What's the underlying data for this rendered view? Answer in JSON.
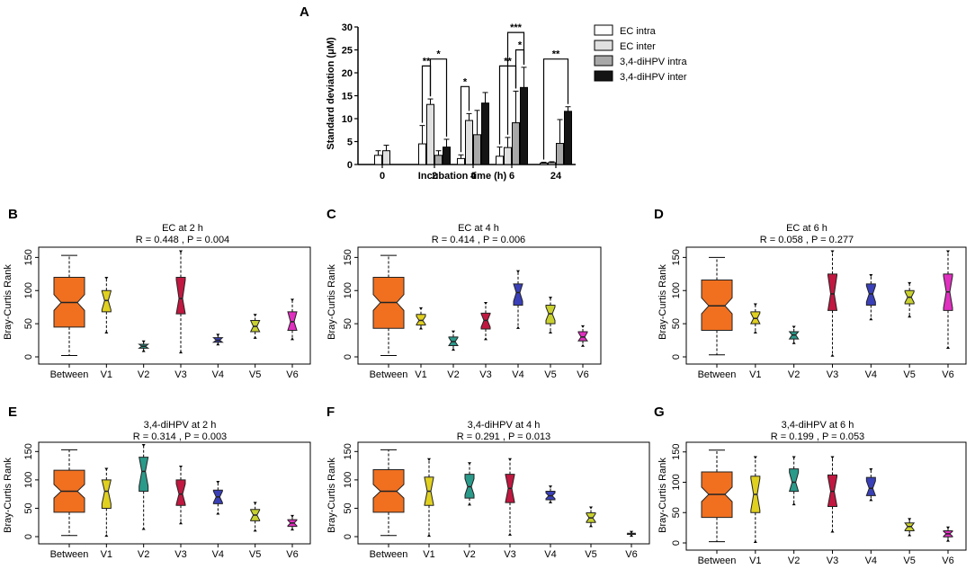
{
  "chart_data": [
    {
      "panel": "A",
      "type": "bar",
      "title": "",
      "xlabel": "Incubation time (h)",
      "ylabel": "Standard deviation (μM)",
      "ylim": [
        0,
        30
      ],
      "yticks": [
        "0",
        "5",
        "10",
        "15",
        "20",
        "25",
        "30"
      ],
      "categories": [
        "0",
        "2",
        "4",
        "6",
        "24"
      ],
      "series": [
        {
          "name": "EC intra",
          "color": "#ffffff",
          "values": [
            2.0,
            4.5,
            1.3,
            1.8,
            0.3
          ],
          "errors": [
            1.0,
            4.0,
            0.8,
            2.0,
            0.2
          ]
        },
        {
          "name": "EC inter",
          "color": "#e0e0e0",
          "values": [
            3.0,
            13.1,
            9.6,
            3.7,
            0.4
          ],
          "errors": [
            1.2,
            1.2,
            1.5,
            2.2,
            0.2
          ]
        },
        {
          "name": "3,4-diHPV intra",
          "color": "#a8a8a8",
          "values": [
            null,
            2.0,
            6.5,
            9.1,
            4.6
          ],
          "errors": [
            null,
            1.0,
            5.3,
            6.9,
            5.2
          ]
        },
        {
          "name": "3,4-diHPV inter",
          "color": "#141414",
          "values": [
            null,
            3.8,
            13.4,
            16.8,
            11.6
          ],
          "errors": [
            null,
            1.7,
            2.3,
            4.4,
            1.0
          ]
        }
      ],
      "significance": [
        "**",
        "*",
        "*",
        "**",
        "***",
        "*",
        "**"
      ]
    },
    {
      "panel": "B",
      "type": "boxplot",
      "title": "EC at 2 h",
      "subtitle": "R = 0.448 ,  P = 0.004",
      "ylabel": "Bray-Curtis Rank",
      "ylim": [
        0,
        160
      ],
      "yticks": [
        "0",
        "50",
        "100",
        "150"
      ],
      "categories": [
        "Between",
        "V1",
        "V2",
        "V3",
        "V4",
        "V5",
        "V6"
      ],
      "boxes": [
        {
          "min": 2,
          "q1": 45,
          "median": 82,
          "q3": 120,
          "max": 153,
          "notch": 12
        },
        {
          "min": 38,
          "q1": 68,
          "median": 85,
          "q3": 100,
          "max": 118,
          "notch": 14
        },
        {
          "min": 10,
          "q1": 13,
          "median": 16,
          "q3": 19,
          "max": 22,
          "notch": 4
        },
        {
          "min": 8,
          "q1": 65,
          "median": 88,
          "q3": 120,
          "max": 158,
          "notch": 28
        },
        {
          "min": 20,
          "q1": 22,
          "median": 25,
          "q3": 29,
          "max": 32,
          "notch": 5
        },
        {
          "min": 30,
          "q1": 38,
          "median": 46,
          "q3": 55,
          "max": 62,
          "notch": 10
        },
        {
          "min": 28,
          "q1": 40,
          "median": 53,
          "q3": 68,
          "max": 85,
          "notch": 16
        }
      ]
    },
    {
      "panel": "C",
      "type": "boxplot",
      "title": "EC at 4 h",
      "subtitle": "R = 0.414 ,  P = 0.006",
      "ylabel": "Bray-Curtis Rank",
      "ylim": [
        0,
        160
      ],
      "yticks": [
        "0",
        "50",
        "100",
        "150"
      ],
      "categories": [
        "Between",
        "V1",
        "V2",
        "V3",
        "V4",
        "V5",
        "V6"
      ],
      "boxes": [
        {
          "min": 2,
          "q1": 43,
          "median": 82,
          "q3": 120,
          "max": 153,
          "notch": 12
        },
        {
          "min": 44,
          "q1": 48,
          "median": 55,
          "q3": 64,
          "max": 72,
          "notch": 6
        },
        {
          "min": 12,
          "q1": 17,
          "median": 23,
          "q3": 30,
          "max": 37,
          "notch": 6
        },
        {
          "min": 28,
          "q1": 42,
          "median": 55,
          "q3": 66,
          "max": 80,
          "notch": 10
        },
        {
          "min": 45,
          "q1": 78,
          "median": 97,
          "q3": 110,
          "max": 128,
          "notch": 13
        },
        {
          "min": 38,
          "q1": 50,
          "median": 65,
          "q3": 78,
          "max": 88,
          "notch": 10
        },
        {
          "min": 18,
          "q1": 24,
          "median": 30,
          "q3": 38,
          "max": 45,
          "notch": 7
        }
      ]
    },
    {
      "panel": "D",
      "type": "boxplot",
      "title": "EC at 6 h",
      "subtitle": "R = 0.058 ,  P = 0.277",
      "ylabel": "Bray-Curtis Rank",
      "ylim": [
        0,
        160
      ],
      "yticks": [
        "0",
        "50",
        "100",
        "150"
      ],
      "categories": [
        "Between",
        "V1",
        "V2",
        "V3",
        "V4",
        "V5",
        "V6"
      ],
      "boxes": [
        {
          "min": 3,
          "q1": 40,
          "median": 77,
          "q3": 116,
          "max": 150,
          "notch": 12
        },
        {
          "min": 38,
          "q1": 50,
          "median": 58,
          "q3": 68,
          "max": 78,
          "notch": 8
        },
        {
          "min": 22,
          "q1": 27,
          "median": 33,
          "q3": 38,
          "max": 44,
          "notch": 6
        },
        {
          "min": 3,
          "q1": 70,
          "median": 95,
          "q3": 125,
          "max": 158,
          "notch": 28
        },
        {
          "min": 58,
          "q1": 78,
          "median": 95,
          "q3": 110,
          "max": 122,
          "notch": 12
        },
        {
          "min": 62,
          "q1": 80,
          "median": 90,
          "q3": 100,
          "max": 110,
          "notch": 8
        },
        {
          "min": 15,
          "q1": 70,
          "median": 98,
          "q3": 125,
          "max": 158,
          "notch": 24
        }
      ]
    },
    {
      "panel": "E",
      "type": "boxplot",
      "title": "3,4-diHPV at 2 h",
      "subtitle": "R = 0.314 ,  P = 0.003",
      "ylabel": "Bray-Curtis Rank",
      "ylim": [
        0,
        160
      ],
      "yticks": [
        "0",
        "50",
        "100",
        "150"
      ],
      "categories": [
        "Between",
        "V1",
        "V2",
        "V3",
        "V4",
        "V5",
        "V6"
      ],
      "boxes": [
        {
          "min": 2,
          "q1": 43,
          "median": 80,
          "q3": 117,
          "max": 153,
          "notch": 12
        },
        {
          "min": 3,
          "q1": 50,
          "median": 80,
          "q3": 100,
          "max": 118,
          "notch": 22
        },
        {
          "min": 15,
          "q1": 80,
          "median": 115,
          "q3": 140,
          "max": 160,
          "notch": 26
        },
        {
          "min": 25,
          "q1": 55,
          "median": 75,
          "q3": 100,
          "max": 122,
          "notch": 18
        },
        {
          "min": 42,
          "q1": 58,
          "median": 70,
          "q3": 82,
          "max": 95,
          "notch": 10
        },
        {
          "min": 12,
          "q1": 28,
          "median": 38,
          "q3": 48,
          "max": 58,
          "notch": 9
        },
        {
          "min": 14,
          "q1": 18,
          "median": 24,
          "q3": 30,
          "max": 35,
          "notch": 5
        }
      ]
    },
    {
      "panel": "F",
      "type": "boxplot",
      "title": "3,4-diHPV at 4 h",
      "subtitle": "R = 0.291 ,  P = 0.013",
      "ylabel": "Bray-Curtis Rank",
      "ylim": [
        0,
        160
      ],
      "yticks": [
        "0",
        "50",
        "100",
        "150"
      ],
      "categories": [
        "Between",
        "V1",
        "V2",
        "V3",
        "V4",
        "V5",
        "V6"
      ],
      "boxes": [
        {
          "min": 2,
          "q1": 43,
          "median": 80,
          "q3": 118,
          "max": 153,
          "notch": 12
        },
        {
          "min": 3,
          "q1": 55,
          "median": 80,
          "q3": 105,
          "max": 135,
          "notch": 24
        },
        {
          "min": 58,
          "q1": 68,
          "median": 88,
          "q3": 110,
          "max": 128,
          "notch": 14
        },
        {
          "min": 5,
          "q1": 60,
          "median": 85,
          "q3": 110,
          "max": 135,
          "notch": 24
        },
        {
          "min": 62,
          "q1": 65,
          "median": 72,
          "q3": 80,
          "max": 87,
          "notch": 5
        },
        {
          "min": 20,
          "q1": 25,
          "median": 33,
          "q3": 42,
          "max": 50,
          "notch": 7
        },
        {
          "min": 3,
          "q1": 4,
          "median": 5,
          "q3": 6,
          "max": 7,
          "notch": 1
        }
      ]
    },
    {
      "panel": "G",
      "type": "boxplot",
      "title": "3,4-diHPV at 6 h",
      "subtitle": "R = 0.199 ,  P = 0.053",
      "ylabel": "Bray-Curtis Rank",
      "ylim": [
        0,
        160
      ],
      "yticks": [
        "0",
        "50",
        "100",
        "150"
      ],
      "categories": [
        "Between",
        "V1",
        "V2",
        "V3",
        "V4",
        "V5",
        "V6"
      ],
      "boxes": [
        {
          "min": 2,
          "q1": 42,
          "median": 80,
          "q3": 117,
          "max": 153,
          "notch": 12
        },
        {
          "min": 3,
          "q1": 50,
          "median": 80,
          "q3": 110,
          "max": 140,
          "notch": 26
        },
        {
          "min": 65,
          "q1": 85,
          "median": 100,
          "q3": 122,
          "max": 140,
          "notch": 16
        },
        {
          "min": 20,
          "q1": 60,
          "median": 85,
          "q3": 112,
          "max": 140,
          "notch": 24
        },
        {
          "min": 72,
          "q1": 78,
          "median": 90,
          "q3": 108,
          "max": 120,
          "notch": 12
        },
        {
          "min": 14,
          "q1": 20,
          "median": 27,
          "q3": 33,
          "max": 38,
          "notch": 6
        },
        {
          "min": 5,
          "q1": 10,
          "median": 15,
          "q3": 20,
          "max": 24,
          "notch": 4
        }
      ]
    }
  ]
}
